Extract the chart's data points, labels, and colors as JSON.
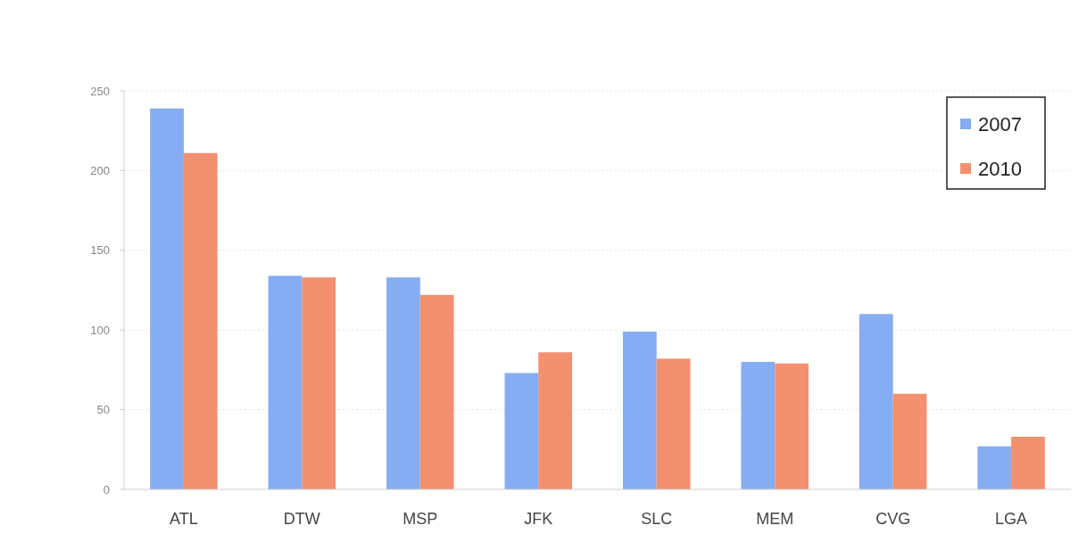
{
  "chart_data": {
    "type": "bar",
    "categories": [
      "ATL",
      "DTW",
      "MSP",
      "JFK",
      "SLC",
      "MEM",
      "CVG",
      "LGA"
    ],
    "series": [
      {
        "name": "2007",
        "color": "#86acf2",
        "values": [
          239,
          134,
          133,
          73,
          99,
          80,
          110,
          27
        ]
      },
      {
        "name": "2010",
        "color": "#f2906f",
        "values": [
          211,
          133,
          122,
          86,
          82,
          79,
          60,
          33
        ]
      }
    ],
    "ylim": [
      0,
      250
    ],
    "yticks": [
      0,
      50,
      100,
      150,
      200,
      250
    ],
    "grid": "y",
    "legend": "top right"
  }
}
